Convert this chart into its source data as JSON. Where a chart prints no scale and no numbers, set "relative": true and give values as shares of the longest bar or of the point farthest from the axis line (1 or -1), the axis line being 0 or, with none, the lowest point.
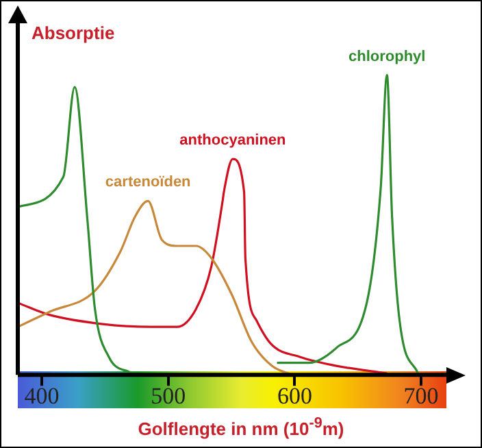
{
  "chart_data": {
    "type": "line",
    "relative": true,
    "ylabel": "Absorptie",
    "xlabel": "Golflengte in nm (10$^{-9}$m)",
    "xlim": [
      381,
      720
    ],
    "xticks": [
      400,
      500,
      600,
      700
    ],
    "grid": false,
    "legend": false,
    "marker": "none",
    "line_style": "solid",
    "series": [
      {
        "name": "chlorophyl",
        "color": "#2e8b2e",
        "x": [
          381,
          417,
          426,
          436,
          442,
          453,
          471,
          560,
          586,
          611,
          633,
          657,
          668,
          673,
          677,
          683,
          698
        ],
        "values": [
          0.56,
          0.66,
          0.96,
          0.52,
          0.22,
          0.06,
          0.005,
          null,
          0.04,
          0.04,
          0.09,
          0.24,
          0.62,
          1.0,
          0.53,
          0.18,
          0
        ]
      },
      {
        "name": "cartenoïden",
        "color": "#c8883a",
        "x": [
          381,
          406,
          442,
          462,
          474,
          484,
          495,
          507,
          522,
          534,
          550,
          566,
          582,
          598
        ],
        "values": [
          0.16,
          0.21,
          0.28,
          0.41,
          0.53,
          0.58,
          0.45,
          0.43,
          0.43,
          0.39,
          0.27,
          0.11,
          0.03,
          0
        ]
      },
      {
        "name": "anthocyaninen",
        "color": "#d01020",
        "x": [
          381,
          406,
          447,
          486,
          507,
          522,
          534,
          543,
          544,
          551,
          560,
          561,
          570,
          582,
          604,
          633,
          673
        ],
        "values": [
          0.24,
          0.2,
          0.17,
          0.16,
          0.16,
          0.22,
          0.36,
          0.58,
          0.61,
          0.72,
          0.61,
          0.39,
          0.18,
          0.1,
          0.06,
          0.03,
          0.005
        ]
      }
    ]
  }
}
